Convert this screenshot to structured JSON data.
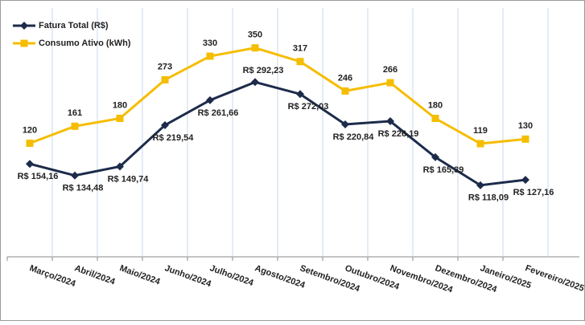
{
  "chart_data": {
    "type": "line",
    "categories": [
      "Março/2024",
      "Abril/2024",
      "Maio/2024",
      "Junho/2024",
      "Julho/2024",
      "Agosto/2024",
      "Setembro/2024",
      "Outubro/2024",
      "Novembro/2024",
      "Dezembro/2024",
      "Janeiro/2025",
      "Fevereiro/2025"
    ],
    "series": [
      {
        "name": "Fatura Total (R$)",
        "color": "#1c2b4a",
        "marker": "diamond",
        "values": [
          154.16,
          134.48,
          149.74,
          219.54,
          261.66,
          292.23,
          272.03,
          220.84,
          226.19,
          165.39,
          118.09,
          127.16
        ],
        "value_labels": [
          "R$ 154,16",
          "R$ 134,48",
          "R$ 149,74",
          "R$ 219,54",
          "R$ 261,66",
          "R$ 292,23",
          "R$ 272,03",
          "R$ 220,84",
          "R$ 226,19",
          "R$ 165,39",
          "R$ 118,09",
          "R$ 127,16"
        ]
      },
      {
        "name": "Consumo Ativo (kWh)",
        "color": "#f5bd00",
        "marker": "square",
        "axis": "y2",
        "values": [
          120,
          161,
          180,
          273,
          330,
          350,
          317,
          246,
          266,
          180,
          119,
          130
        ]
      }
    ],
    "ylim": [
      0,
      420
    ],
    "y2lim": [
      -150,
      450
    ],
    "grid": true,
    "legend": "top-left"
  }
}
